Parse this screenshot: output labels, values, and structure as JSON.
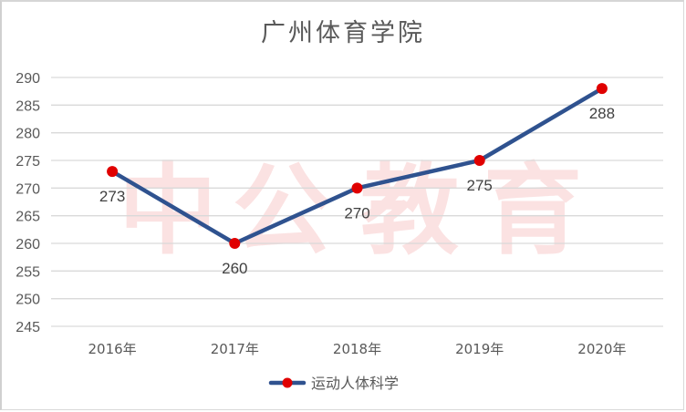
{
  "chart_data": {
    "type": "line",
    "title": "广州体育学院",
    "categories": [
      "2016年",
      "2017年",
      "2018年",
      "2019年",
      "2020年"
    ],
    "series": [
      {
        "name": "运动人体科学",
        "values": [
          273,
          260,
          270,
          275,
          288
        ],
        "color": "#2f528f",
        "marker_color": "#e00000"
      }
    ],
    "data_labels": [
      "273",
      "260",
      "270",
      "275",
      "288"
    ],
    "xlabel": "",
    "ylabel": "",
    "ylim": [
      245,
      290
    ],
    "yticks": [
      "290",
      "285",
      "280",
      "275",
      "270",
      "265",
      "260",
      "255",
      "250",
      "245"
    ],
    "grid": true,
    "legend_position": "bottom",
    "watermark": "中公教育"
  }
}
